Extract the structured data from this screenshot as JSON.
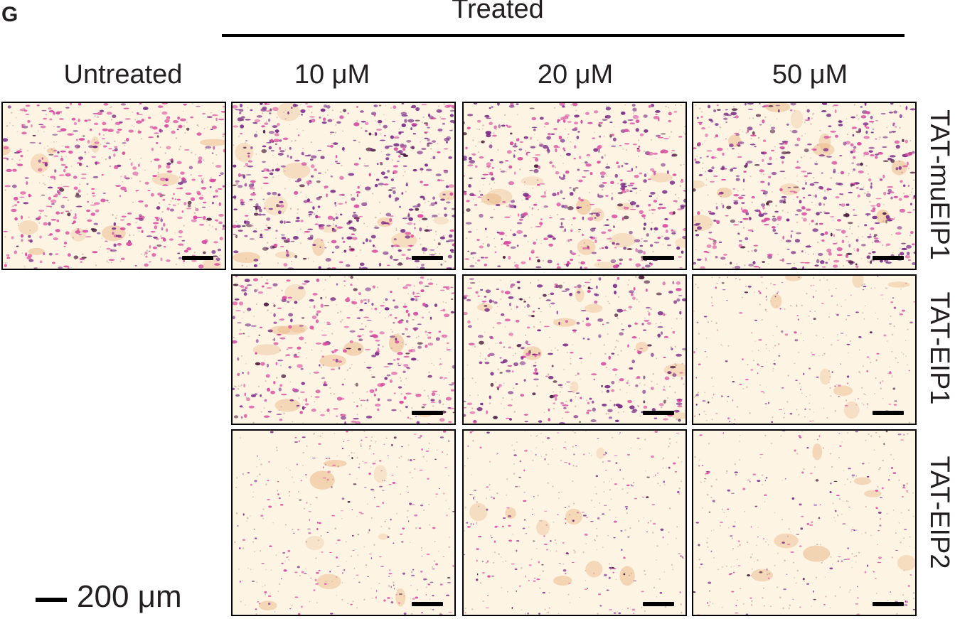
{
  "figure": {
    "panel_label": "G",
    "group_title": "Treated",
    "columns": {
      "untreated": "Untreated",
      "c10": "10 μM",
      "c20": "20 μM",
      "c50": "50 μM"
    },
    "rows": {
      "r1": "TAT-muEIP1",
      "r2": "TAT-EIP1",
      "r3": "TAT-EIP2"
    },
    "scale_legend": "200 μm"
  },
  "micrographs": [
    {
      "name": "untreated-tat-muEIP1",
      "stain": "purple-pink",
      "cell_density": 0.85,
      "pink_ratio": 0.75
    },
    {
      "name": "tat-muEIP1-10uM",
      "stain": "purple",
      "cell_density": 0.95,
      "pink_ratio": 0.25
    },
    {
      "name": "tat-muEIP1-20uM",
      "stain": "purple-red",
      "cell_density": 0.85,
      "pink_ratio": 0.5
    },
    {
      "name": "tat-muEIP1-50uM",
      "stain": "purple-red",
      "cell_density": 0.9,
      "pink_ratio": 0.4
    },
    {
      "name": "tat-EIP1-10uM",
      "stain": "purple-pink",
      "cell_density": 0.6,
      "pink_ratio": 0.6
    },
    {
      "name": "tat-EIP1-20uM",
      "stain": "purple",
      "cell_density": 0.5,
      "pink_ratio": 0.4
    },
    {
      "name": "tat-EIP1-50uM",
      "stain": "pale",
      "cell_density": 0.18,
      "pink_ratio": 0.5
    },
    {
      "name": "tat-EIP2-10uM",
      "stain": "pale-pink",
      "cell_density": 0.35,
      "pink_ratio": 0.6
    },
    {
      "name": "tat-EIP2-20uM",
      "stain": "pale",
      "cell_density": 0.28,
      "pink_ratio": 0.5
    },
    {
      "name": "tat-EIP2-50uM",
      "stain": "pale",
      "cell_density": 0.22,
      "pink_ratio": 0.5
    }
  ],
  "colors": {
    "background": "#fdf4e4",
    "purple": "#7a2a86",
    "pink": "#d94aa0",
    "orange_debris": "#e8b07a",
    "dark": "#4a1a3a"
  }
}
